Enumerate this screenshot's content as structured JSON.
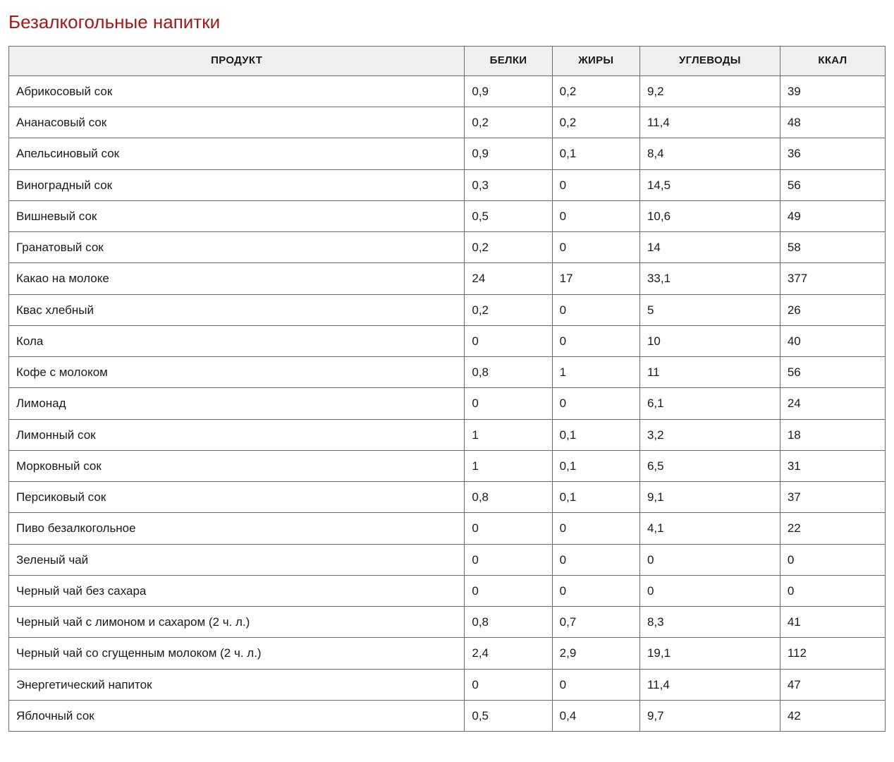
{
  "title": "Безалкогольные напитки",
  "table": {
    "type": "table",
    "header_bg": "#efefef",
    "border_color": "#6b6b6b",
    "title_color": "#a01a1a",
    "text_color": "#1a1a1a",
    "font_family": "Arial",
    "title_fontsize": 26,
    "header_fontsize": 15,
    "cell_fontsize": 17,
    "columns": [
      {
        "key": "product",
        "label": "ПРОДУКТ",
        "width_pct": 52,
        "align": "left"
      },
      {
        "key": "protein",
        "label": "БЕЛКИ",
        "width_pct": 10,
        "align": "left"
      },
      {
        "key": "fat",
        "label": "ЖИРЫ",
        "width_pct": 10,
        "align": "left"
      },
      {
        "key": "carb",
        "label": "УГЛЕВОДЫ",
        "width_pct": 16,
        "align": "left"
      },
      {
        "key": "kcal",
        "label": "ККАЛ",
        "width_pct": 12,
        "align": "left"
      }
    ],
    "rows": [
      {
        "product": "Абрикосовый сок",
        "protein": "0,9",
        "fat": "0,2",
        "carb": "9,2",
        "kcal": "39"
      },
      {
        "product": "Ананасовый сок",
        "protein": "0,2",
        "fat": "0,2",
        "carb": "11,4",
        "kcal": "48"
      },
      {
        "product": "Апельсиновый сок",
        "protein": "0,9",
        "fat": "0,1",
        "carb": "8,4",
        "kcal": "36"
      },
      {
        "product": "Виноградный сок",
        "protein": "0,3",
        "fat": "0",
        "carb": "14,5",
        "kcal": "56"
      },
      {
        "product": "Вишневый сок",
        "protein": "0,5",
        "fat": "0",
        "carb": "10,6",
        "kcal": "49"
      },
      {
        "product": "Гранатовый сок",
        "protein": "0,2",
        "fat": "0",
        "carb": "14",
        "kcal": "58"
      },
      {
        "product": "Какао на молоке",
        "protein": "24",
        "fat": "17",
        "carb": "33,1",
        "kcal": "377"
      },
      {
        "product": "Квас хлебный",
        "protein": "0,2",
        "fat": "0",
        "carb": "5",
        "kcal": "26"
      },
      {
        "product": "Кола",
        "protein": "0",
        "fat": "0",
        "carb": "10",
        "kcal": "40"
      },
      {
        "product": "Кофе с молоком",
        "protein": "0,8",
        "fat": "1",
        "carb": "11",
        "kcal": "56"
      },
      {
        "product": "Лимонад",
        "protein": "0",
        "fat": "0",
        "carb": "6,1",
        "kcal": "24"
      },
      {
        "product": "Лимонный сок",
        "protein": "1",
        "fat": "0,1",
        "carb": "3,2",
        "kcal": "18"
      },
      {
        "product": "Морковный сок",
        "protein": "1",
        "fat": "0,1",
        "carb": "6,5",
        "kcal": "31"
      },
      {
        "product": "Персиковый сок",
        "protein": "0,8",
        "fat": "0,1",
        "carb": "9,1",
        "kcal": "37"
      },
      {
        "product": "Пиво безалкогольное",
        "protein": "0",
        "fat": "0",
        "carb": "4,1",
        "kcal": "22"
      },
      {
        "product": "Зеленый чай",
        "protein": "0",
        "fat": "0",
        "carb": "0",
        "kcal": "0"
      },
      {
        "product": "Черный чай без сахара",
        "protein": "0",
        "fat": "0",
        "carb": "0",
        "kcal": "0"
      },
      {
        "product": "Черный чай с лимоном и сахаром (2 ч. л.)",
        "protein": "0,8",
        "fat": "0,7",
        "carb": "8,3",
        "kcal": "41"
      },
      {
        "product": "Черный чай со сгущенным молоком (2 ч. л.)",
        "protein": "2,4",
        "fat": "2,9",
        "carb": "19,1",
        "kcal": "112"
      },
      {
        "product": "Энергетический напиток",
        "protein": "0",
        "fat": "0",
        "carb": "11,4",
        "kcal": "47"
      },
      {
        "product": "Яблочный сок",
        "protein": "0,5",
        "fat": "0,4",
        "carb": "9,7",
        "kcal": "42"
      }
    ]
  }
}
